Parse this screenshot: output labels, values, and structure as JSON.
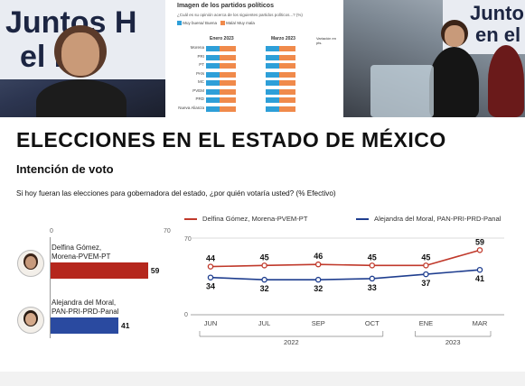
{
  "photos": {
    "left_banner_line1": "Juntos H",
    "left_banner_line2": "el Es",
    "right_banner_line1": "Junto",
    "right_banner_line2": "en el"
  },
  "inset": {
    "title": "Imagen de los partidos políticos",
    "subtitle": "¿Cuál es su opinión acerca de los siguientes partidos políticos...? (%)",
    "legend_good": "Muy buena/ Buena",
    "legend_bad": "Mala/ Muy mala",
    "col1": "Enero 2023",
    "col2": "Marzo 2023",
    "col3": "Variación en pts.",
    "parties": [
      "Morena",
      "PRI",
      "PT",
      "PAN",
      "MC",
      "PVEM",
      "PRD",
      "Nueva Alianza"
    ],
    "colors": {
      "good": "#2e9fd8",
      "bad": "#f08a4b"
    }
  },
  "headline": "ELECCIONES EN EL ESTADO DE MÉXICO",
  "section_title": "Intención de voto",
  "question": "Si hoy fueran las elecciones para gobernadora del estado, ¿por quién votaría usted? (% Efectivo)",
  "chart_data": [
    {
      "type": "bar",
      "orientation": "horizontal",
      "xlim": [
        0,
        70
      ],
      "ticks": [
        "0",
        "70"
      ],
      "categories": [
        "Delfina Gómez, Morena-PVEM-PT",
        "Alejandra del Moral, PAN-PRI-PRD-Panal"
      ],
      "labels": [
        [
          "Delfina Gómez,",
          "Morena-PVEM-PT"
        ],
        [
          "Alejandra del Moral,",
          "PAN-PRI-PRD-Panal"
        ]
      ],
      "values": [
        59,
        41
      ],
      "colors": [
        "#b5271d",
        "#2a4aa0"
      ]
    },
    {
      "type": "line",
      "x": [
        "JUN",
        "JUL",
        "SEP",
        "OCT",
        "ENE",
        "MAR"
      ],
      "year_groups": [
        {
          "label": "2022",
          "span": 4
        },
        {
          "label": "2023",
          "span": 2
        }
      ],
      "ylim": [
        0,
        70
      ],
      "yticks": [
        "0",
        "70"
      ],
      "series": [
        {
          "name": "Delfina Gómez, Morena-PVEM-PT",
          "values": [
            44,
            45,
            46,
            45,
            45,
            59
          ],
          "color": "#c0392b"
        },
        {
          "name": "Alejandra del Moral, PAN-PRI-PRD-Panal",
          "values": [
            34,
            32,
            32,
            33,
            37,
            41
          ],
          "color": "#1f3e8f"
        }
      ],
      "grid": true
    }
  ]
}
